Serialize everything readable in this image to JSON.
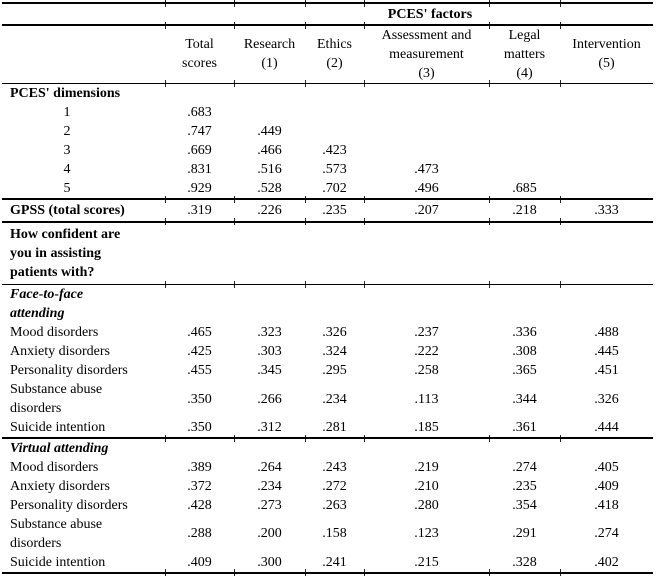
{
  "table": {
    "spanner": "PCES' factors",
    "columns": [
      "Total\nscores",
      "Research\n(1)",
      "Ethics\n(2)",
      "Assessment and\nmeasurement\n(3)",
      "Legal\nmatters\n(4)",
      "Intervention\n(5)"
    ],
    "rows": [
      {
        "label": "PCES' dimensions",
        "style": "bold",
        "values": [
          "",
          "",
          "",
          "",
          "",
          ""
        ]
      },
      {
        "label": "1",
        "style": "dim",
        "values": [
          ".683",
          "",
          "",
          "",
          "",
          ""
        ]
      },
      {
        "label": "2",
        "style": "dim",
        "values": [
          ".747",
          ".449",
          "",
          "",
          "",
          ""
        ]
      },
      {
        "label": "3",
        "style": "dim",
        "values": [
          ".669",
          ".466",
          ".423",
          "",
          "",
          ""
        ]
      },
      {
        "label": "4",
        "style": "dim",
        "values": [
          ".831",
          ".516",
          ".573",
          ".473",
          "",
          ""
        ]
      },
      {
        "label": "5",
        "style": "dim",
        "rule_below": true,
        "values": [
          ".929",
          ".528",
          ".702",
          ".496",
          ".685",
          ""
        ]
      },
      {
        "label": "GPSS (total scores)",
        "style": "gpss",
        "rule_below": true,
        "values": [
          ".319",
          ".226",
          ".235",
          ".207",
          ".218",
          ".333"
        ]
      },
      {
        "label": "How confident are\nyou in assisting\npatients with?",
        "style": "question",
        "rule_below": true,
        "values": [
          "",
          "",
          "",
          "",
          "",
          ""
        ]
      },
      {
        "label": "Face-to-face\nattending",
        "style": "bolditalic",
        "values": [
          "",
          "",
          "",
          "",
          "",
          ""
        ]
      },
      {
        "label": "Mood disorders",
        "style": "plain",
        "values": [
          ".465",
          ".323",
          ".326",
          ".237",
          ".336",
          ".488"
        ]
      },
      {
        "label": "Anxiety disorders",
        "style": "plain",
        "values": [
          ".425",
          ".303",
          ".324",
          ".222",
          ".308",
          ".445"
        ]
      },
      {
        "label": "Personality disorders",
        "style": "plain",
        "values": [
          ".455",
          ".345",
          ".295",
          ".258",
          ".365",
          ".451"
        ]
      },
      {
        "label": "Substance abuse\ndisorders",
        "style": "plain",
        "values": [
          ".350",
          ".266",
          ".234",
          ".113",
          ".344",
          ".326"
        ]
      },
      {
        "label": "Suicide intention",
        "style": "plain",
        "rule_below": true,
        "values": [
          ".350",
          ".312",
          ".281",
          ".185",
          ".361",
          ".444"
        ]
      },
      {
        "label": "Virtual attending",
        "style": "bolditalic",
        "values": [
          "",
          "",
          "",
          "",
          "",
          ""
        ]
      },
      {
        "label": "Mood disorders",
        "style": "plain",
        "values": [
          ".389",
          ".264",
          ".243",
          ".219",
          ".274",
          ".405"
        ]
      },
      {
        "label": "Anxiety disorders",
        "style": "plain",
        "values": [
          ".372",
          ".234",
          ".272",
          ".210",
          ".235",
          ".409"
        ]
      },
      {
        "label": "Personality disorders",
        "style": "plain",
        "values": [
          ".428",
          ".273",
          ".263",
          ".280",
          ".354",
          ".418"
        ]
      },
      {
        "label": "Substance abuse\ndisorders",
        "style": "plain",
        "values": [
          ".288",
          ".200",
          ".158",
          ".123",
          ".291",
          ".274"
        ]
      },
      {
        "label": "Suicide intention",
        "style": "plain",
        "values": [
          ".409",
          ".300",
          ".241",
          ".215",
          ".328",
          ".402"
        ]
      }
    ]
  }
}
